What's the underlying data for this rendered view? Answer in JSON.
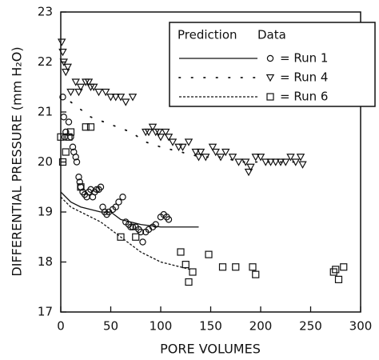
{
  "chart_data": {
    "type": "scatter",
    "x_label": "PORE VOLUMES",
    "y_label": "DIFFERENTIAL PRESSURE (mm H₂O)",
    "xlim": [
      0,
      300
    ],
    "xticks": [
      0,
      50,
      100,
      150,
      200,
      250,
      300
    ],
    "ylim": [
      17,
      23
    ],
    "yticks": [
      17,
      18,
      19,
      20,
      21,
      22,
      23
    ],
    "legend_headers": [
      "Prediction",
      "Data"
    ],
    "legend_position": "upper right",
    "color": "#111111",
    "series": [
      {
        "name": "= Run 1",
        "marker": "circle",
        "line_style": "solid",
        "x": [
          2,
          3,
          4,
          5,
          8,
          10,
          12,
          13,
          15,
          16,
          18,
          19,
          20,
          22,
          24,
          26,
          28,
          30,
          32,
          34,
          36,
          38,
          40,
          42,
          44,
          46,
          48,
          52,
          55,
          58,
          62,
          65,
          68,
          70,
          72,
          75,
          78,
          80,
          82,
          85,
          88,
          92,
          95,
          100,
          103,
          106,
          108
        ],
        "values": [
          21.3,
          20.9,
          20.5,
          20.6,
          20.8,
          20.5,
          20.3,
          20.2,
          20.1,
          20.0,
          19.7,
          19.6,
          19.5,
          19.4,
          19.35,
          19.3,
          19.4,
          19.45,
          19.3,
          19.4,
          19.45,
          19.45,
          19.5,
          19.1,
          19.0,
          18.95,
          19.0,
          19.05,
          19.1,
          19.2,
          19.3,
          18.8,
          18.75,
          18.7,
          18.7,
          18.7,
          18.65,
          18.6,
          18.4,
          18.6,
          18.65,
          18.7,
          18.75,
          18.9,
          18.95,
          18.9,
          18.85
        ],
        "prediction_x": [
          0,
          10,
          20,
          30,
          40,
          50,
          60,
          70,
          80,
          100,
          110,
          138
        ],
        "prediction_values": [
          19.4,
          19.2,
          19.1,
          19.05,
          19.0,
          19.0,
          18.85,
          18.8,
          18.75,
          18.7,
          18.7,
          18.7
        ]
      },
      {
        "name": "= Run 4",
        "marker": "triangle",
        "line_style": "dotted",
        "x": [
          1,
          2,
          3,
          5,
          7,
          10,
          15,
          18,
          20,
          25,
          28,
          30,
          33,
          38,
          45,
          50,
          55,
          60,
          65,
          72,
          85,
          88,
          92,
          95,
          98,
          100,
          105,
          108,
          112,
          118,
          122,
          128,
          135,
          138,
          140,
          145,
          152,
          155,
          160,
          165,
          172,
          178,
          185,
          188,
          190,
          195,
          200,
          205,
          210,
          215,
          220,
          225,
          230,
          235,
          240,
          242
        ],
        "values": [
          22.4,
          22.2,
          22.0,
          21.8,
          21.9,
          21.4,
          21.6,
          21.4,
          21.5,
          21.6,
          21.6,
          21.5,
          21.5,
          21.4,
          21.4,
          21.3,
          21.3,
          21.3,
          21.2,
          21.3,
          20.6,
          20.6,
          20.7,
          20.6,
          20.6,
          20.5,
          20.6,
          20.5,
          20.4,
          20.3,
          20.3,
          20.4,
          20.2,
          20.1,
          20.2,
          20.1,
          20.3,
          20.2,
          20.1,
          20.2,
          20.1,
          20.0,
          20.0,
          19.8,
          19.9,
          20.1,
          20.1,
          20.0,
          20.0,
          20.0,
          20.0,
          20.0,
          20.1,
          20.0,
          20.1,
          19.95
        ],
        "prediction_x": [
          10,
          30,
          50,
          70,
          85,
          100,
          120,
          140,
          160,
          180,
          200,
          220,
          240
        ],
        "prediction_values": [
          21.2,
          20.9,
          20.75,
          20.6,
          20.4,
          20.3,
          20.2,
          20.1,
          20.1,
          20.0,
          20.0,
          20.0,
          20.0
        ]
      },
      {
        "name": "= Run 6",
        "marker": "square",
        "line_style": "dashed",
        "x": [
          0,
          2,
          5,
          8,
          10,
          20,
          25,
          30,
          60,
          75,
          120,
          125,
          128,
          132,
          148,
          162,
          175,
          192,
          195,
          273,
          275,
          278,
          283
        ],
        "values": [
          20.5,
          20.0,
          20.2,
          20.5,
          20.6,
          19.5,
          20.7,
          20.7,
          18.5,
          18.5,
          18.2,
          17.95,
          17.6,
          17.8,
          18.15,
          17.9,
          17.9,
          17.9,
          17.75,
          17.8,
          17.85,
          17.65,
          17.9
        ],
        "prediction_x": [
          0,
          10,
          20,
          30,
          40,
          50,
          60,
          70,
          80,
          90,
          100,
          110,
          120,
          130
        ],
        "prediction_values": [
          19.3,
          19.1,
          19.0,
          18.9,
          18.8,
          18.65,
          18.5,
          18.35,
          18.2,
          18.1,
          18.0,
          17.95,
          17.9,
          17.85
        ]
      }
    ]
  }
}
